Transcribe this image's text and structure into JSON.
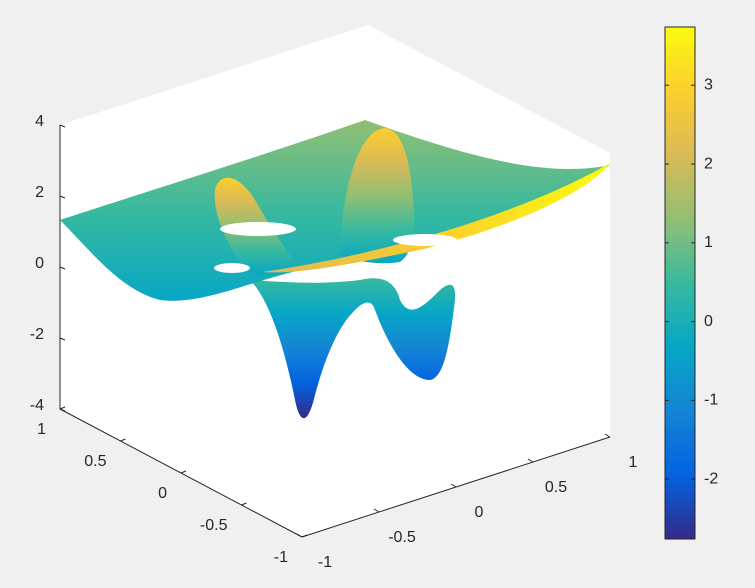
{
  "chart_data": {
    "type": "surface",
    "xlim": [
      -1,
      1
    ],
    "xticks": [
      -1,
      -0.5,
      0,
      0.5,
      1
    ],
    "ylim": [
      -1,
      1
    ],
    "yticks": [
      -1,
      -0.5,
      0,
      0.5,
      1
    ],
    "zlim": [
      -4,
      4
    ],
    "zticks": [
      -4,
      -2,
      0,
      2,
      4
    ],
    "colormap": [
      "#352a87",
      "#0363e1",
      "#1485d4",
      "#06a7c6",
      "#38b99e",
      "#92bf73",
      "#d9ba56",
      "#fcce2e",
      "#f9fb0e"
    ],
    "colorbar": {
      "clim": [
        -2.76,
        3.74
      ],
      "ticks": [
        -2,
        -1,
        0,
        1,
        2,
        3
      ]
    }
  }
}
